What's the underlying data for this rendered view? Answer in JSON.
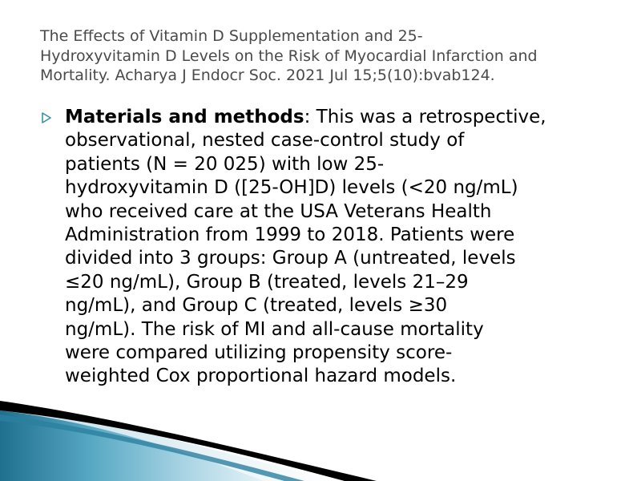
{
  "title": {
    "lines": [
      "The Effects of Vitamin D Supplementation and 25-",
      "Hydroxyvitamin D Levels on the Risk of Myocardial Infarction and",
      "Mortality. Acharya  J Endocr Soc. 2021 Jul 15;5(10):bvab124."
    ]
  },
  "bullet": {
    "icon": "triangle-right-icon",
    "icon_color": "#3a8fa8",
    "lead": "Materials and methods",
    "line1_rest": ": This was a retrospective,",
    "lines": [
      "observational, nested case-control study of",
      "patients (N = 20 025) with low 25-",
      "hydroxyvitamin D ([25-OH]D) levels (<20 ng/mL)",
      "who received care at the USA Veterans Health",
      "Administration from 1999 to 2018. Patients were",
      "divided into 3 groups: Group A (untreated, levels",
      "≤20 ng/mL), Group B (treated, levels 21–29",
      "ng/mL), and Group C (treated, levels ≥30",
      "ng/mL). The risk of MI and all-cause mortality",
      "were compared utilizing propensity score-",
      "weighted Cox proportional hazard models."
    ]
  },
  "colors": {
    "title": "#4a4a4a",
    "accent_blue": "#3a8fa8",
    "deco_dark": "#000000"
  }
}
